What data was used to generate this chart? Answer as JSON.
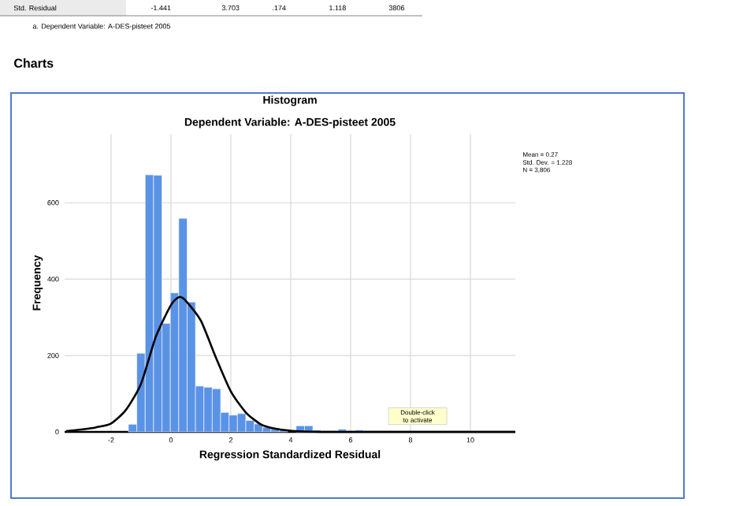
{
  "chart_data": {
    "type": "histogram",
    "title": "Histogram",
    "subtitle": "Dependent Variable: A-DES-pisteet 2005",
    "xlabel": "Regression Standardized Residual",
    "ylabel": "Frequency",
    "bins": [
      -1.42,
      -1.14,
      -0.86,
      -0.58,
      -0.3,
      -0.02,
      0.26,
      0.54,
      0.82,
      1.1,
      1.38,
      1.66,
      1.94,
      2.22,
      2.5,
      2.78,
      3.06,
      3.34,
      3.62,
      3.9,
      4.18,
      4.46,
      4.74,
      5.02,
      5.3,
      5.58,
      5.86,
      6.14,
      6.42
    ],
    "values": [
      20,
      206,
      673,
      672,
      284,
      364,
      559,
      340,
      120,
      117,
      113,
      51,
      44,
      48,
      30,
      21,
      12,
      8,
      5,
      null,
      16,
      16,
      5,
      0,
      0,
      7,
      0,
      5
    ],
    "color": "#5a93e6",
    "series": [
      {
        "type": "line",
        "color": "#000000",
        "x": [
          -3.5,
          -3,
          -2.5,
          -2,
          -1.5,
          -1,
          -0.5,
          0,
          0.27,
          0.5,
          1,
          1.5,
          2,
          2.5,
          3,
          3.5,
          4,
          4.5,
          5,
          6,
          8,
          11.5
        ],
        "values": [
          2,
          6,
          12,
          22,
          58,
          126,
          250,
          332,
          353,
          343,
          291,
          195,
          106,
          51,
          20,
          8,
          3,
          1,
          0,
          0,
          0,
          0
        ]
      }
    ],
    "xlim": [
      -3.55,
      11.5
    ],
    "ylim": [
      0,
      780
    ],
    "xticks": [
      -2,
      0,
      2,
      4,
      6,
      8,
      10
    ],
    "yticks": [
      0,
      200,
      400,
      600
    ],
    "grid": true,
    "annotations": [
      "Std. Residual",
      "-1.441",
      "3.703",
      ".174",
      "1.118",
      "3806",
      "a. Dependent Variable: A-DES-pisteet 2005",
      "Charts",
      "Mean = 0.27",
      "Std. Dev. = 1.228",
      "N = 3,806",
      "Double-click to activate"
    ]
  }
}
